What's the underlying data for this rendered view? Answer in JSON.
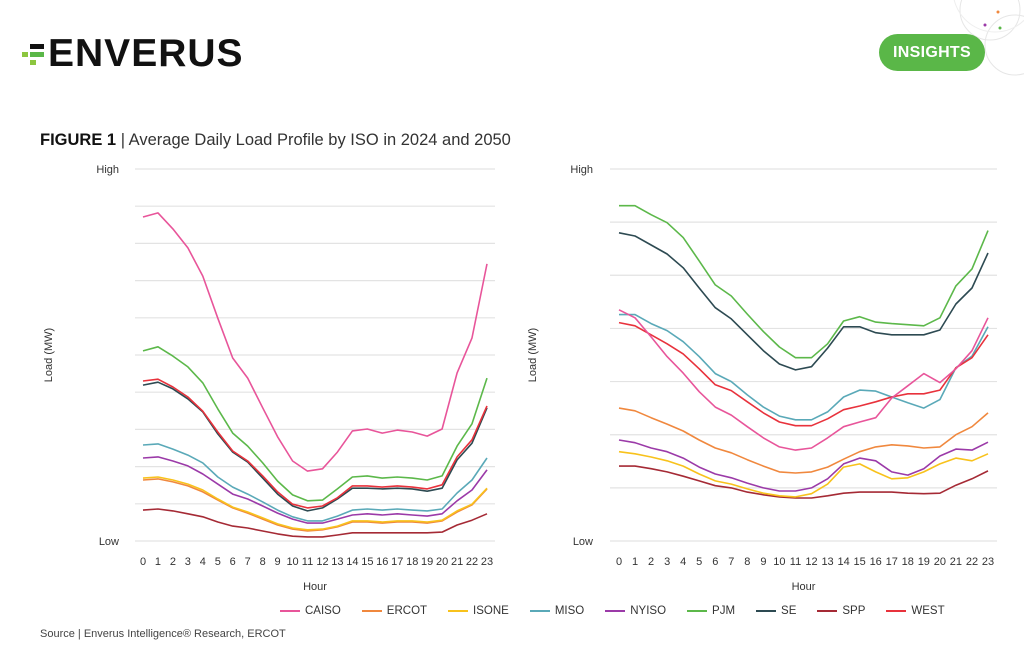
{
  "header": {
    "brand": "ENVERUS",
    "badge_label": "INSIGHTS"
  },
  "figure": {
    "label": "FIGURE 1",
    "separator": " | ",
    "title": "Average Daily Load Profile by ISO in 2024 and 2050"
  },
  "source": "Source | Enverus Intelligence® Research, ERCOT",
  "colors": {
    "CAISO": "#e8559a",
    "ERCOT": "#f0883e",
    "ISONE": "#f8c21c",
    "MISO": "#5aa9b8",
    "NYISO": "#9b3aa8",
    "PJM": "#5cb84a",
    "SE": "#2d4a52",
    "SPP": "#a52a35",
    "WEST": "#e8323c",
    "brand_green": "#5ab748"
  },
  "legend": [
    "CAISO",
    "ERCOT",
    "ISONE",
    "MISO",
    "NYISO",
    "PJM",
    "SE",
    "SPP",
    "WEST"
  ],
  "chart_data": [
    {
      "type": "line",
      "title": "2024",
      "xlabel": "Hour",
      "ylabel": "Load (MW)",
      "y_tick_labels": {
        "high": "High",
        "low": "Low"
      },
      "ylim": [
        0,
        10
      ],
      "gridlines": 10,
      "grid": true,
      "legend_position": "bottom",
      "x": [
        0,
        1,
        2,
        3,
        4,
        5,
        6,
        7,
        8,
        9,
        10,
        11,
        12,
        13,
        14,
        15,
        16,
        17,
        18,
        19,
        20,
        21,
        22,
        23
      ],
      "series": [
        {
          "name": "CAISO",
          "values": [
            8.71,
            8.82,
            8.39,
            7.88,
            7.12,
            5.99,
            4.92,
            4.38,
            3.58,
            2.8,
            2.15,
            1.88,
            1.94,
            2.39,
            2.96,
            3.01,
            2.9,
            2.98,
            2.93,
            2.82,
            3.01,
            4.52,
            5.46,
            7.45
          ]
        },
        {
          "name": "ERCOT",
          "values": [
            1.64,
            1.67,
            1.59,
            1.48,
            1.32,
            1.1,
            0.89,
            0.75,
            0.59,
            0.43,
            0.32,
            0.27,
            0.3,
            0.38,
            0.51,
            0.51,
            0.48,
            0.51,
            0.51,
            0.48,
            0.54,
            0.78,
            0.97,
            1.4
          ]
        },
        {
          "name": "ISONE",
          "values": [
            1.69,
            1.72,
            1.64,
            1.53,
            1.37,
            1.13,
            0.91,
            0.78,
            0.62,
            0.46,
            0.35,
            0.3,
            0.32,
            0.4,
            0.54,
            0.54,
            0.51,
            0.54,
            0.54,
            0.51,
            0.56,
            0.81,
            0.99,
            1.42
          ]
        },
        {
          "name": "MISO",
          "values": [
            2.58,
            2.61,
            2.47,
            2.31,
            2.1,
            1.72,
            1.45,
            1.26,
            1.05,
            0.83,
            0.65,
            0.54,
            0.54,
            0.67,
            0.83,
            0.86,
            0.83,
            0.86,
            0.83,
            0.81,
            0.86,
            1.29,
            1.64,
            2.23
          ]
        },
        {
          "name": "NYISO",
          "values": [
            2.23,
            2.26,
            2.15,
            2.02,
            1.8,
            1.53,
            1.26,
            1.13,
            0.94,
            0.75,
            0.59,
            0.48,
            0.48,
            0.59,
            0.7,
            0.73,
            0.7,
            0.73,
            0.7,
            0.67,
            0.73,
            1.08,
            1.37,
            1.91
          ]
        },
        {
          "name": "PJM",
          "values": [
            5.11,
            5.22,
            4.97,
            4.68,
            4.25,
            3.55,
            2.9,
            2.55,
            2.1,
            1.61,
            1.24,
            1.08,
            1.1,
            1.4,
            1.72,
            1.75,
            1.69,
            1.72,
            1.69,
            1.64,
            1.75,
            2.55,
            3.15,
            4.38
          ]
        },
        {
          "name": "SE",
          "values": [
            4.19,
            4.27,
            4.09,
            3.82,
            3.47,
            2.88,
            2.39,
            2.12,
            1.69,
            1.26,
            0.94,
            0.81,
            0.89,
            1.13,
            1.42,
            1.42,
            1.4,
            1.42,
            1.4,
            1.34,
            1.42,
            2.18,
            2.63,
            3.58
          ]
        },
        {
          "name": "SPP",
          "values": [
            0.83,
            0.86,
            0.81,
            0.73,
            0.65,
            0.51,
            0.4,
            0.35,
            0.27,
            0.19,
            0.13,
            0.11,
            0.11,
            0.16,
            0.22,
            0.22,
            0.22,
            0.22,
            0.22,
            0.22,
            0.24,
            0.43,
            0.56,
            0.73
          ]
        },
        {
          "name": "WEST",
          "values": [
            4.3,
            4.35,
            4.14,
            3.87,
            3.49,
            2.93,
            2.42,
            2.15,
            1.75,
            1.32,
            0.99,
            0.89,
            0.94,
            1.16,
            1.48,
            1.48,
            1.45,
            1.48,
            1.45,
            1.4,
            1.51,
            2.26,
            2.72,
            3.63
          ]
        }
      ]
    },
    {
      "type": "line",
      "title": "2050",
      "xlabel": "Hour",
      "ylabel": "Load (MW)",
      "y_tick_labels": {
        "high": "High",
        "low": "Low"
      },
      "ylim": [
        0,
        7
      ],
      "gridlines": 7,
      "grid": true,
      "legend_position": "bottom",
      "x": [
        0,
        1,
        2,
        3,
        4,
        5,
        6,
        7,
        8,
        9,
        10,
        11,
        12,
        13,
        14,
        15,
        16,
        17,
        18,
        19,
        20,
        21,
        22,
        23
      ],
      "series": [
        {
          "name": "CAISO",
          "values": [
            4.35,
            4.2,
            3.84,
            3.47,
            3.16,
            2.81,
            2.52,
            2.37,
            2.15,
            1.94,
            1.77,
            1.71,
            1.75,
            1.94,
            2.15,
            2.24,
            2.32,
            2.69,
            2.92,
            3.15,
            2.98,
            3.24,
            3.58,
            4.2
          ]
        },
        {
          "name": "ERCOT",
          "values": [
            2.5,
            2.45,
            2.32,
            2.2,
            2.07,
            1.9,
            1.75,
            1.66,
            1.53,
            1.41,
            1.3,
            1.28,
            1.3,
            1.39,
            1.54,
            1.68,
            1.77,
            1.81,
            1.79,
            1.75,
            1.77,
            2.0,
            2.15,
            2.41
          ]
        },
        {
          "name": "ISONE",
          "values": [
            1.68,
            1.64,
            1.58,
            1.51,
            1.41,
            1.26,
            1.13,
            1.07,
            0.98,
            0.9,
            0.85,
            0.83,
            0.89,
            1.07,
            1.39,
            1.45,
            1.3,
            1.17,
            1.19,
            1.3,
            1.45,
            1.56,
            1.51,
            1.64
          ]
        },
        {
          "name": "MISO",
          "values": [
            4.26,
            4.26,
            4.09,
            3.96,
            3.75,
            3.47,
            3.15,
            3.0,
            2.75,
            2.52,
            2.35,
            2.28,
            2.28,
            2.43,
            2.71,
            2.84,
            2.82,
            2.71,
            2.6,
            2.5,
            2.66,
            3.26,
            3.48,
            4.03
          ]
        },
        {
          "name": "NYISO",
          "values": [
            1.9,
            1.85,
            1.75,
            1.68,
            1.56,
            1.39,
            1.26,
            1.19,
            1.09,
            1.0,
            0.94,
            0.94,
            1.0,
            1.17,
            1.45,
            1.56,
            1.51,
            1.3,
            1.24,
            1.36,
            1.6,
            1.73,
            1.71,
            1.86
          ]
        },
        {
          "name": "PJM",
          "values": [
            6.31,
            6.31,
            6.14,
            5.99,
            5.71,
            5.27,
            4.82,
            4.61,
            4.27,
            3.94,
            3.65,
            3.45,
            3.45,
            3.71,
            4.14,
            4.22,
            4.12,
            4.09,
            4.07,
            4.05,
            4.2,
            4.8,
            5.12,
            5.84
          ]
        },
        {
          "name": "SE",
          "values": [
            5.8,
            5.74,
            5.57,
            5.4,
            5.14,
            4.76,
            4.39,
            4.18,
            3.88,
            3.58,
            3.33,
            3.22,
            3.28,
            3.63,
            4.03,
            4.03,
            3.92,
            3.88,
            3.88,
            3.88,
            3.97,
            4.46,
            4.76,
            5.42
          ]
        },
        {
          "name": "SPP",
          "values": [
            1.41,
            1.41,
            1.36,
            1.3,
            1.22,
            1.13,
            1.04,
            1.0,
            0.92,
            0.87,
            0.83,
            0.81,
            0.81,
            0.85,
            0.9,
            0.92,
            0.92,
            0.92,
            0.9,
            0.89,
            0.9,
            1.05,
            1.17,
            1.32
          ]
        },
        {
          "name": "WEST",
          "values": [
            4.11,
            4.05,
            3.88,
            3.71,
            3.52,
            3.24,
            2.94,
            2.83,
            2.62,
            2.41,
            2.24,
            2.17,
            2.17,
            2.3,
            2.47,
            2.54,
            2.62,
            2.71,
            2.77,
            2.77,
            2.84,
            3.26,
            3.45,
            3.88
          ]
        }
      ]
    }
  ]
}
